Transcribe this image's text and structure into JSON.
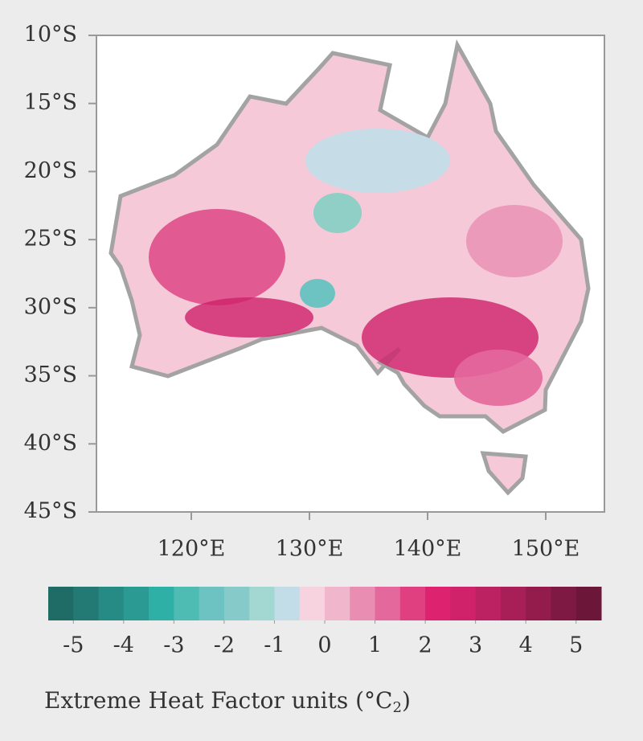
{
  "map": {
    "lat_ticks": [
      {
        "value": 10,
        "label": "10°S"
      },
      {
        "value": 15,
        "label": "15°S"
      },
      {
        "value": 20,
        "label": "20°S"
      },
      {
        "value": 25,
        "label": "25°S"
      },
      {
        "value": 30,
        "label": "30°S"
      },
      {
        "value": 35,
        "label": "35°S"
      },
      {
        "value": 40,
        "label": "40°S"
      },
      {
        "value": 45,
        "label": "45°S"
      }
    ],
    "lon_ticks": [
      {
        "value": 120,
        "label": "120°E"
      },
      {
        "value": 130,
        "label": "130°E"
      },
      {
        "value": 140,
        "label": "140°E"
      },
      {
        "value": 150,
        "label": "150°E"
      }
    ]
  },
  "colorbar": {
    "lim": [
      -5.5,
      5.5
    ],
    "ticks": [
      -5,
      -4,
      -3,
      -2,
      -1,
      0,
      1,
      2,
      3,
      4,
      5
    ],
    "colors": [
      "#1f6b66",
      "#237a74",
      "#268b84",
      "#2a9a92",
      "#2fb0a6",
      "#4fbcb4",
      "#6cc3c2",
      "#86cbc9",
      "#a3d7d2",
      "#c3dde8",
      "#f7d3e0",
      "#f0b6cc",
      "#e98eb2",
      "#e4689c",
      "#e0407f",
      "#dd2270",
      "#d0226a",
      "#bc2262",
      "#a81f57",
      "#931c4c",
      "#7e1943",
      "#6c1739"
    ]
  },
  "caption": {
    "text": "Extreme Heat Factor units (°C",
    "subscript": "2",
    "close": ")"
  }
}
